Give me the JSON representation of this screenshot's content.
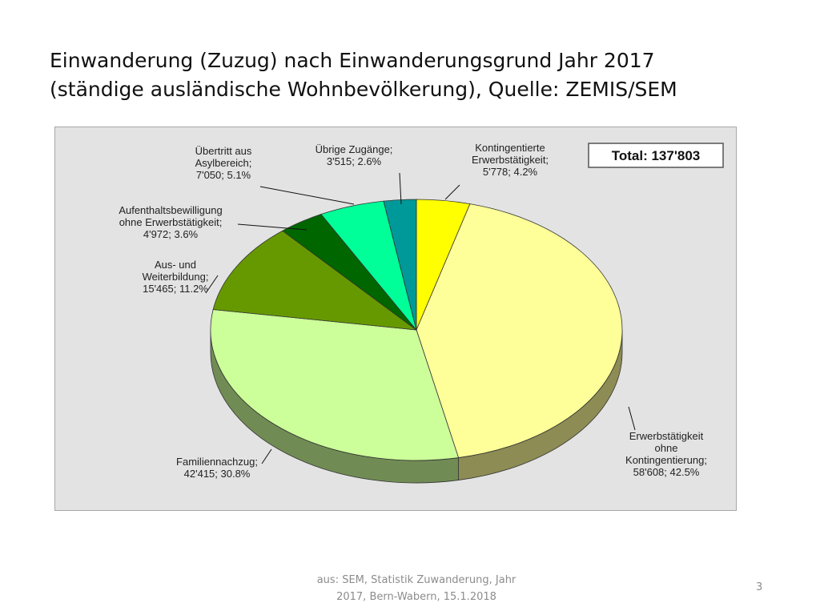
{
  "slide": {
    "title_line1": "Einwanderung (Zuzug) nach Einwanderungsgrund Jahr 2017",
    "title_line2": "(ständige ausländische Wohnbevölkerung), Quelle: ZEMIS/SEM",
    "source_line1": "aus: SEM, Statistik Zuwanderung, Jahr",
    "source_line2": "2017, Bern-Wabern, 15.1.2018",
    "page_number": "3"
  },
  "chart_data": {
    "type": "pie",
    "three_d": true,
    "total_label": "Total: 137'803",
    "total": 137803,
    "slices": [
      {
        "name": "Kontingentierte Erwerbstätigkeit",
        "label_lines": [
          "Kontingentierte",
          "Erwerbstätigkeit;",
          "5'778; 4.2%"
        ],
        "value": 5778,
        "percent": 4.2,
        "color": "#ffff00"
      },
      {
        "name": "Erwerbstätigkeit ohne Kontingentierung",
        "label_lines": [
          "Erwerbstätigkeit",
          "ohne",
          "Kontingentierung;",
          "58'608; 42.5%"
        ],
        "value": 58608,
        "percent": 42.5,
        "color": "#ffff99"
      },
      {
        "name": "Familiennachzug",
        "label_lines": [
          "Familiennachzug;",
          "42'415; 30.8%"
        ],
        "value": 42415,
        "percent": 30.8,
        "color": "#ccff99"
      },
      {
        "name": "Aus- und Weiterbildung",
        "label_lines": [
          "Aus- und",
          "Weiterbildung;",
          "15'465; 11.2%"
        ],
        "value": 15465,
        "percent": 11.2,
        "color": "#669900"
      },
      {
        "name": "Aufenthaltsbewilligung ohne Erwerbstätigkeit",
        "label_lines": [
          "Aufenthaltsbewilligung",
          "ohne Erwerbstätigkeit;",
          "4'972; 3.6%"
        ],
        "value": 4972,
        "percent": 3.6,
        "color": "#006600"
      },
      {
        "name": "Übertritt aus Asylbereich",
        "label_lines": [
          "Übertritt aus",
          "Asylbereich;",
          "7'050; 5.1%"
        ],
        "value": 7050,
        "percent": 5.1,
        "color": "#00ff99"
      },
      {
        "name": "Übrige Zugänge",
        "label_lines": [
          "Übrige Zugänge;",
          "3'515; 2.6%"
        ],
        "value": 3515,
        "percent": 2.6,
        "color": "#009999"
      }
    ]
  }
}
